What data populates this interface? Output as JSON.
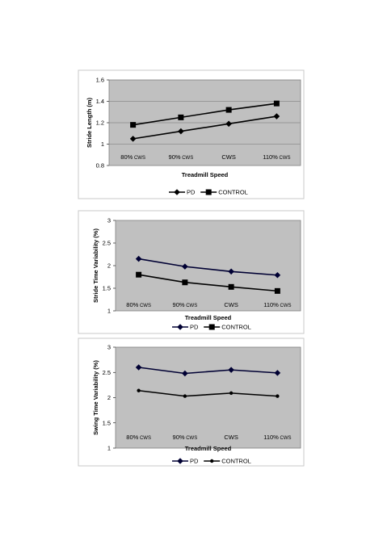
{
  "chart_data": [
    {
      "type": "line",
      "categories": [
        "80% CWS",
        "90% CWS",
        "CWS",
        "110% CWS"
      ],
      "series": [
        {
          "name": "PD",
          "values": [
            1.05,
            1.12,
            1.19,
            1.26
          ],
          "color": "#000000",
          "marker": "diamond"
        },
        {
          "name": "CONTROL",
          "values": [
            1.18,
            1.25,
            1.32,
            1.38
          ],
          "color": "#000000",
          "marker": "square"
        }
      ],
      "xlabel": "Treadmill Speed",
      "ylabel": "Stride Length (m)",
      "ylim": [
        0.8,
        1.6
      ],
      "yticks": [
        "0.8",
        "1",
        "1.2",
        "1.4",
        "1.6"
      ],
      "grid": true,
      "legend": "bottom"
    },
    {
      "type": "line",
      "categories": [
        "80% CWS",
        "90% CWS",
        "CWS",
        "110% CWS"
      ],
      "series": [
        {
          "name": "PD",
          "values": [
            2.15,
            1.98,
            1.87,
            1.79
          ],
          "color": "#000033",
          "marker": "diamond"
        },
        {
          "name": "CONTROL",
          "values": [
            1.8,
            1.63,
            1.53,
            1.44
          ],
          "color": "#000000",
          "marker": "square"
        }
      ],
      "xlabel": "Treadmill Speed",
      "ylabel": "Stride Time Variability (%)",
      "ylim": [
        1,
        3
      ],
      "yticks": [
        "1",
        "1.5",
        "2",
        "2.5",
        "3"
      ],
      "grid": false,
      "legend": "bottom"
    },
    {
      "type": "line",
      "categories": [
        "80% CWS",
        "90% CWS",
        "CWS",
        "110% CWS"
      ],
      "series": [
        {
          "name": "PD",
          "values": [
            2.6,
            2.48,
            2.55,
            2.49
          ],
          "color": "#000033",
          "marker": "diamond"
        },
        {
          "name": "CONTROL",
          "values": [
            2.14,
            2.03,
            2.09,
            2.03
          ],
          "color": "#000000",
          "marker": "circle"
        }
      ],
      "xlabel": "Treadmill Speed",
      "ylabel": "Swing Time Variability (%)",
      "ylim": [
        1,
        3
      ],
      "yticks": [
        "1",
        "1.5",
        "2",
        "2.5",
        "3"
      ],
      "grid": false,
      "legend": "bottom"
    }
  ]
}
